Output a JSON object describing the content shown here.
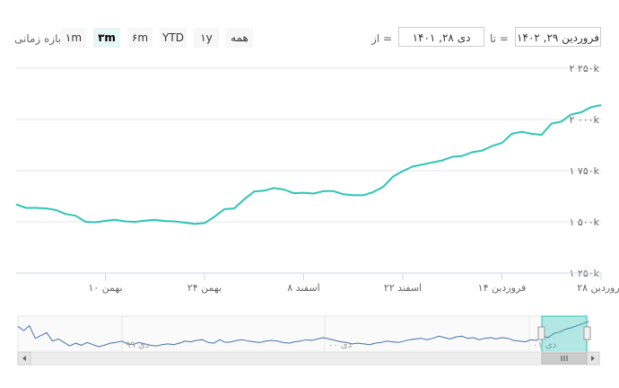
{
  "toolbar": {
    "zoom_label": "بازه زمانی",
    "buttons": [
      "۱m",
      "۳m",
      "۶m",
      "YTD",
      "۱y",
      "همه"
    ],
    "active_index": 1,
    "from_label": "از =",
    "to_label": "تا =",
    "from_value": "دی ۲۸, ۱۴۰۱",
    "to_value": "فروردین ۲۹, ۱۴۰۲"
  },
  "chart_data": {
    "type": "line",
    "title": "",
    "xlabel": "",
    "ylabel": "",
    "ylim": [
      1250,
      2250
    ],
    "yticks": [
      1250,
      1500,
      1750,
      2000,
      2250
    ],
    "ytick_labels": [
      "۱ ۲۵۰k",
      "۱ ۵۰۰k",
      "۱ ۷۵۰k",
      "۲ ۰۰۰k",
      "۲ ۲۵۰k"
    ],
    "xticks": [
      {
        "index": 9,
        "label": "بهمن ۱۰"
      },
      {
        "index": 19,
        "label": "بهمن ۲۴"
      },
      {
        "index": 29,
        "label": "اسفند ۸"
      },
      {
        "index": 39,
        "label": "اسفند ۲۲"
      },
      {
        "index": 49,
        "label": "فروردین ۱۴"
      },
      {
        "index": 59,
        "label": "فروردین ۲۸"
      }
    ],
    "grid": true,
    "color": "#2ec4b6",
    "values": [
      1585,
      1568,
      1568,
      1566,
      1558,
      1538,
      1530,
      1500,
      1498,
      1505,
      1510,
      1502,
      1500,
      1506,
      1510,
      1504,
      1502,
      1496,
      1490,
      1494,
      1525,
      1562,
      1566,
      1610,
      1648,
      1652,
      1665,
      1658,
      1640,
      1642,
      1638,
      1650,
      1650,
      1635,
      1630,
      1630,
      1645,
      1670,
      1720,
      1748,
      1770,
      1780,
      1790,
      1800,
      1818,
      1822,
      1840,
      1848,
      1870,
      1885,
      1930,
      1940,
      1930,
      1925,
      1980,
      1990,
      2025,
      2035,
      2060,
      2070
    ],
    "navigator_labels": [
      "دی ۹۹",
      "دی ۰۰",
      "دی ۰۱"
    ],
    "navigator_values": [
      2290,
      2230,
      2300,
      2120,
      2160,
      2200,
      2080,
      2110,
      2060,
      2010,
      2050,
      2020,
      2060,
      2030,
      2000,
      2020,
      2050,
      2060,
      2080,
      2040,
      2030,
      2060,
      2040,
      2020,
      2010,
      2030,
      2040,
      2030,
      2050,
      2080,
      2070,
      2090,
      2100,
      2060,
      2050,
      2100,
      2060,
      2070,
      2090,
      2100,
      2080,
      2070,
      2060,
      2080,
      2090,
      2080,
      2060,
      2050,
      2070,
      2080,
      2100,
      2090,
      2110,
      2130,
      2110,
      2090,
      2070,
      2060,
      2040,
      2050,
      2040,
      2030,
      2050,
      2060,
      2080,
      2070,
      2060,
      2080,
      2100,
      2110,
      2120,
      2100,
      2120,
      2150,
      2130,
      2110,
      2140,
      2150,
      2120,
      2130,
      2100,
      2120,
      2130,
      2110,
      2130,
      2120,
      2090,
      2080,
      2070,
      2100,
      2090,
      2150,
      2130,
      2190,
      2210,
      2250,
      2270,
      2300,
      2330,
      2360
    ]
  }
}
